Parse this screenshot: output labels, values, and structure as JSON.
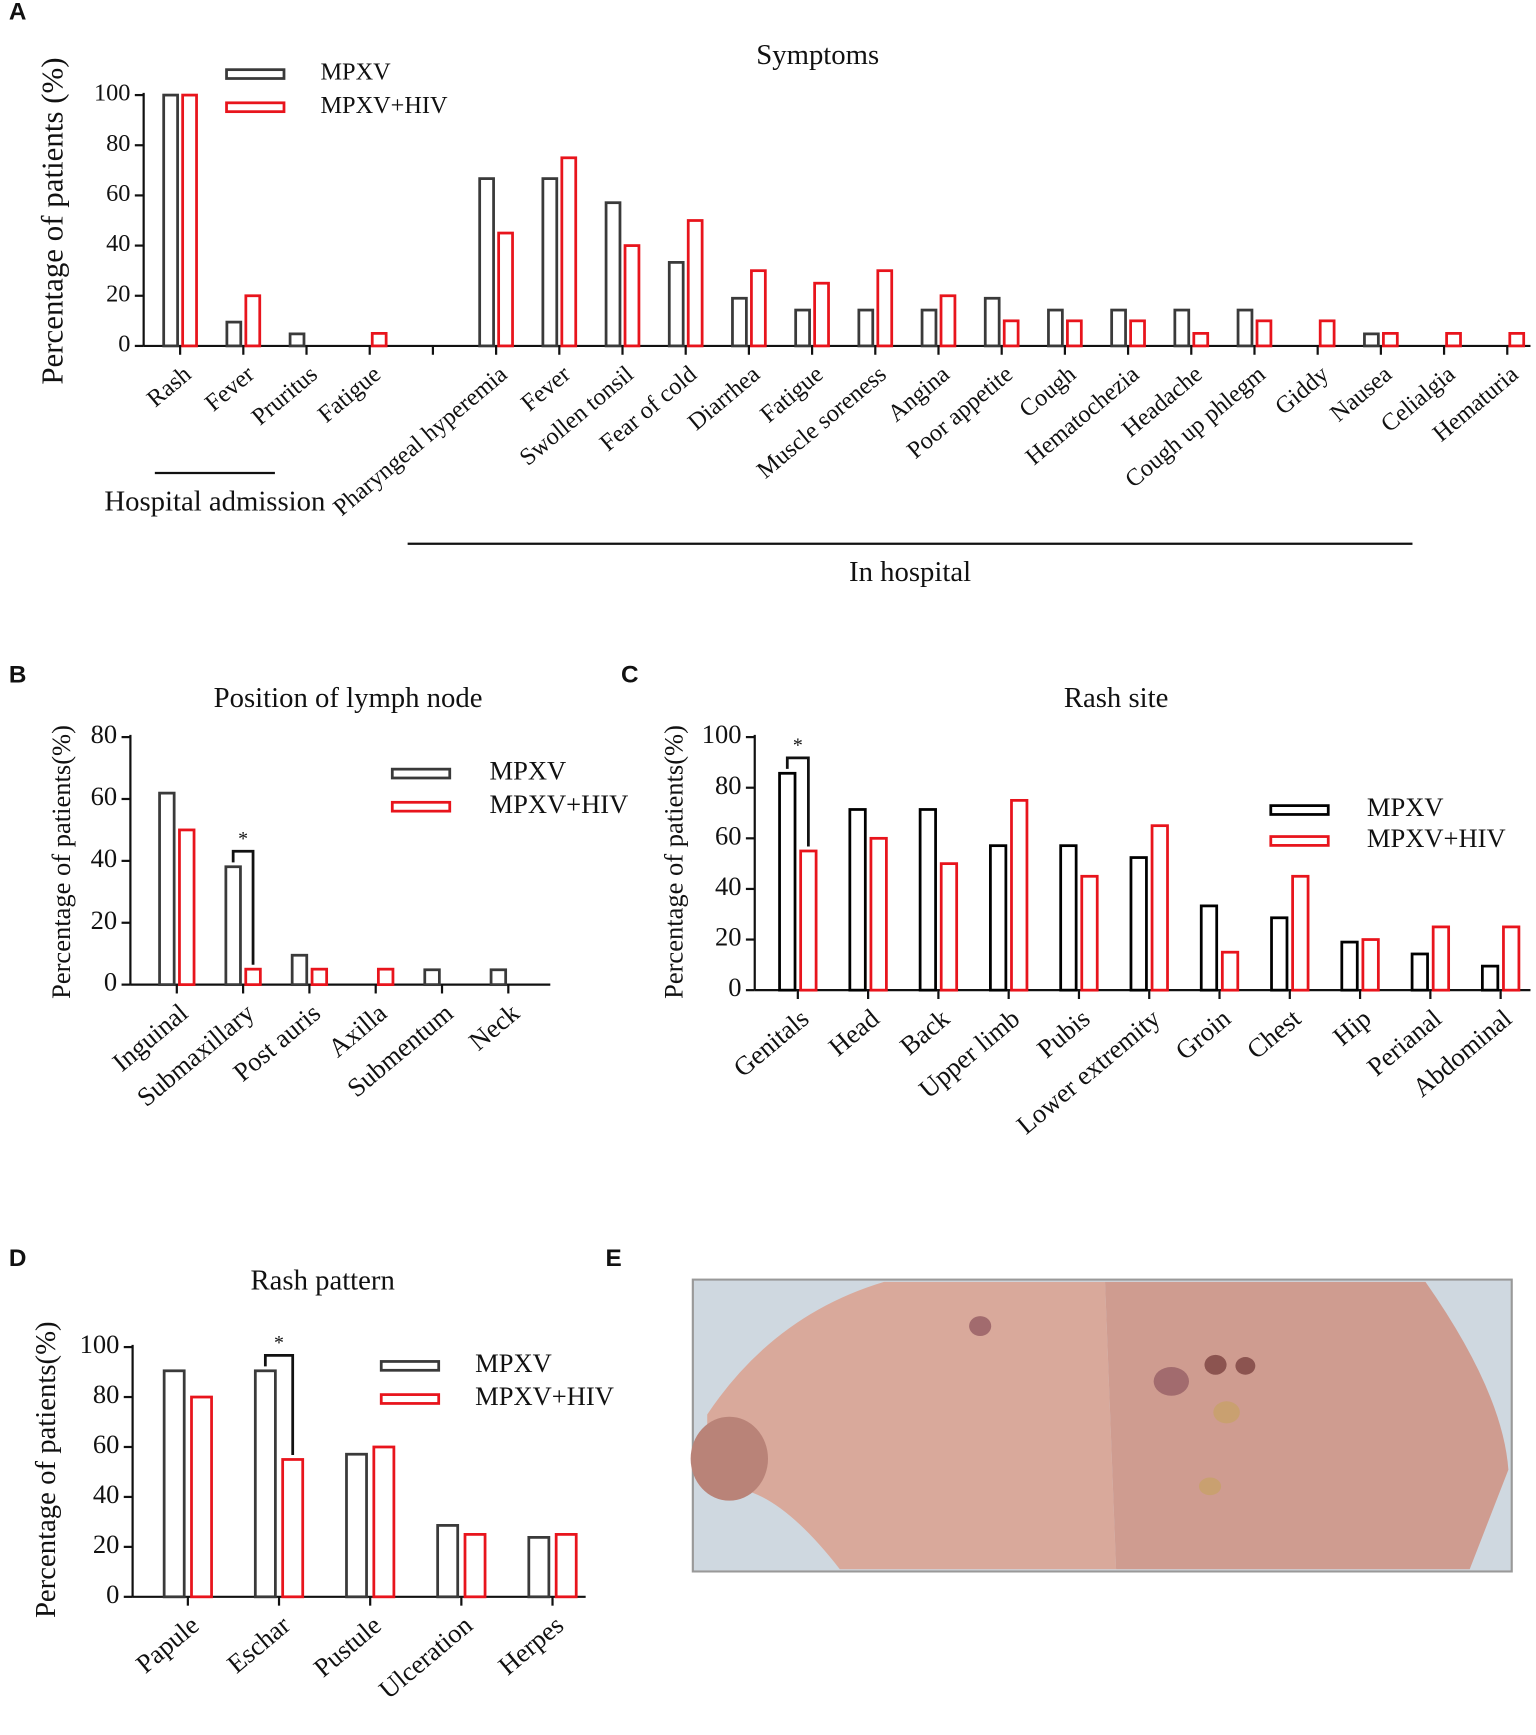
{
  "chart_data": [
    {
      "panel": "A",
      "type": "bar",
      "title": "Symptoms",
      "ylabel": "Percentage of patients (%)",
      "categories": [
        "Rash",
        "Fever",
        "Pruritus",
        "Fatigue",
        null,
        "Pharyngeal hyperemia",
        "Fever",
        "Swollen tonsil",
        "Fear of cold",
        "Diarrhea",
        "Fatigue",
        "Muscle soreness",
        "Angina",
        "Poor appetite",
        "Cough",
        "Hematochezia",
        "Headache",
        "Cough up phlegm",
        "Giddy",
        "Nausea",
        "Celialgia",
        "Hematuria"
      ],
      "series": [
        {
          "name": "MPXV",
          "color": "#3a3a3a",
          "values": [
            100,
            9.5,
            4.8,
            0,
            null,
            66.7,
            66.7,
            57.1,
            33.3,
            19,
            14.3,
            14.3,
            14.3,
            19,
            14.3,
            14.3,
            14.3,
            14.3,
            0,
            4.8,
            0,
            0
          ]
        },
        {
          "name": "MPXV+HIV",
          "color": "#e8141c",
          "values": [
            100,
            20,
            0,
            5,
            null,
            45,
            75,
            40,
            50,
            30,
            25,
            30,
            20,
            10,
            10,
            10,
            5,
            10,
            10,
            5,
            5,
            5
          ]
        }
      ],
      "ylim": [
        0,
        100
      ],
      "yticks": [
        0,
        20,
        40,
        60,
        80,
        100
      ],
      "groups": [
        {
          "label": "Hospital admission",
          "categories": [
            0,
            2
          ]
        },
        {
          "label": "In hospital",
          "categories": [
            4,
            20
          ]
        }
      ]
    },
    {
      "panel": "B",
      "type": "bar",
      "title": "Position of lymph node",
      "ylabel": "Percentage of patients(%)",
      "categories": [
        "Inguinal",
        "Submaxillary",
        "Post auris",
        "Axilla",
        "Submentum",
        "Neck"
      ],
      "series": [
        {
          "name": "MPXV",
          "color": "#3a3a3a",
          "values": [
            61.9,
            38.1,
            9.5,
            0,
            4.8,
            4.8
          ]
        },
        {
          "name": "MPXV+HIV",
          "color": "#e8141c",
          "values": [
            50,
            5,
            5,
            5,
            0,
            0
          ]
        }
      ],
      "ylim": [
        0,
        80
      ],
      "yticks": [
        0,
        20,
        40,
        60,
        80
      ],
      "annotations": [
        {
          "text": "*",
          "category": 1
        }
      ]
    },
    {
      "panel": "C",
      "type": "bar",
      "title": "Rash site",
      "ylabel": "Percentage of patients(%)",
      "categories": [
        "Genitals",
        "Head",
        "Back",
        "Upper limb",
        "Pubis",
        "Lower extremity",
        "Groin",
        "Chest",
        "Hip",
        "Perianal",
        "Abdominal"
      ],
      "series": [
        {
          "name": "MPXV",
          "color": "#000000",
          "values": [
            85.7,
            71.4,
            71.4,
            57.1,
            57.1,
            52.4,
            33.3,
            28.6,
            19,
            14.3,
            9.5
          ]
        },
        {
          "name": "MPXV+HIV",
          "color": "#e8141c",
          "values": [
            55,
            60,
            50,
            75,
            45,
            65,
            15,
            45,
            20,
            25,
            25
          ]
        }
      ],
      "ylim": [
        0,
        100
      ],
      "yticks": [
        0,
        20,
        40,
        60,
        80,
        100
      ],
      "annotations": [
        {
          "text": "*",
          "category": 0
        }
      ]
    },
    {
      "panel": "D",
      "type": "bar",
      "title": "Rash pattern",
      "ylabel": "Percentage of patients(%)",
      "categories": [
        "Papule",
        "Eschar",
        "Pustule",
        "Ulceration",
        "Herpes"
      ],
      "series": [
        {
          "name": "MPXV",
          "color": "#3a3a3a",
          "values": [
            90.5,
            90.5,
            57.1,
            28.6,
            23.8
          ]
        },
        {
          "name": "MPXV+HIV",
          "color": "#e8141c",
          "values": [
            80,
            55,
            60,
            25,
            25
          ]
        }
      ],
      "ylim": [
        0,
        100
      ],
      "yticks": [
        0,
        20,
        40,
        60,
        80,
        100
      ],
      "annotations": [
        {
          "text": "*",
          "category": 1
        }
      ]
    },
    {
      "panel": "E",
      "type": "image"
    }
  ]
}
